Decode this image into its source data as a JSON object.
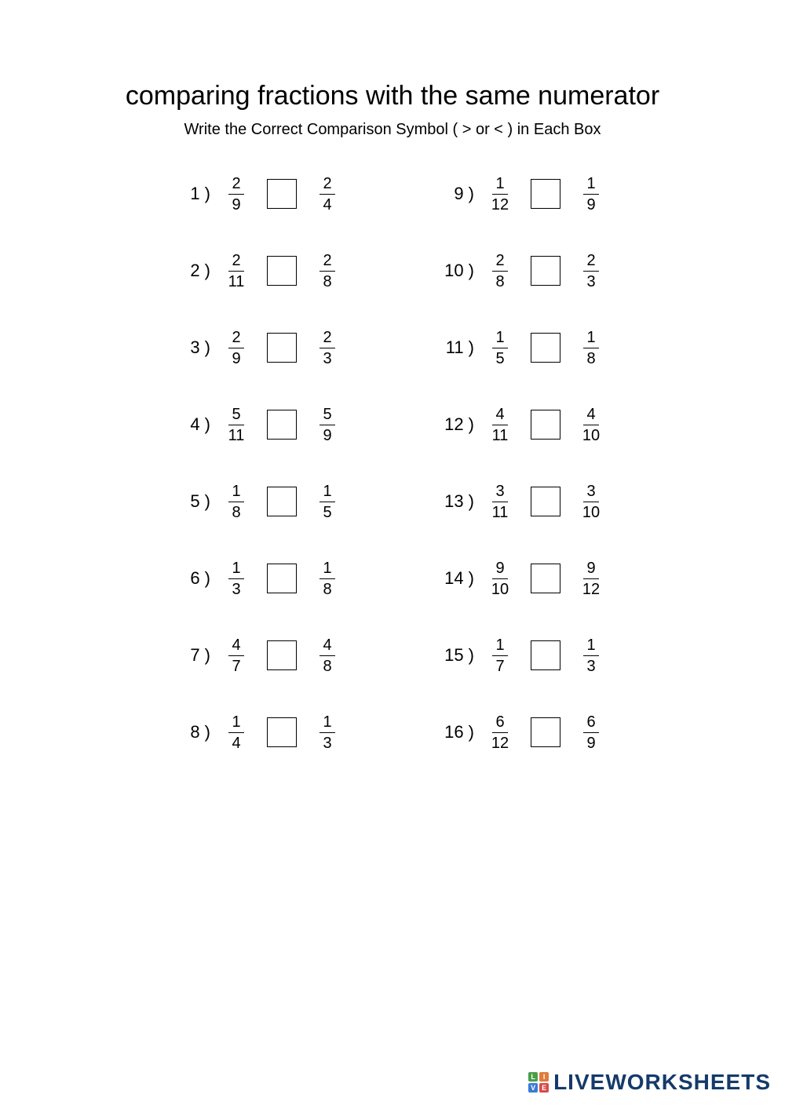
{
  "title": "comparing fractions with the same numerator",
  "instructions": "Write the Correct Comparison Symbol ( > or < ) in Each Box",
  "problems": [
    {
      "n": "1 )",
      "ln": "2",
      "ld": "9",
      "rn": "2",
      "rd": "4"
    },
    {
      "n": "2 )",
      "ln": "2",
      "ld": "11",
      "rn": "2",
      "rd": "8"
    },
    {
      "n": "3 )",
      "ln": "2",
      "ld": "9",
      "rn": "2",
      "rd": "3"
    },
    {
      "n": "4 )",
      "ln": "5",
      "ld": "11",
      "rn": "5",
      "rd": "9"
    },
    {
      "n": "5 )",
      "ln": "1",
      "ld": "8",
      "rn": "1",
      "rd": "5"
    },
    {
      "n": "6 )",
      "ln": "1",
      "ld": "3",
      "rn": "1",
      "rd": "8"
    },
    {
      "n": "7 )",
      "ln": "4",
      "ld": "7",
      "rn": "4",
      "rd": "8"
    },
    {
      "n": "8 )",
      "ln": "1",
      "ld": "4",
      "rn": "1",
      "rd": "3"
    },
    {
      "n": "9 )",
      "ln": "1",
      "ld": "12",
      "rn": "1",
      "rd": "9"
    },
    {
      "n": "10 )",
      "ln": "2",
      "ld": "8",
      "rn": "2",
      "rd": "3"
    },
    {
      "n": "11 )",
      "ln": "1",
      "ld": "5",
      "rn": "1",
      "rd": "8"
    },
    {
      "n": "12 )",
      "ln": "4",
      "ld": "11",
      "rn": "4",
      "rd": "10"
    },
    {
      "n": "13 )",
      "ln": "3",
      "ld": "11",
      "rn": "3",
      "rd": "10"
    },
    {
      "n": "14 )",
      "ln": "9",
      "ld": "10",
      "rn": "9",
      "rd": "12"
    },
    {
      "n": "15 )",
      "ln": "1",
      "ld": "7",
      "rn": "1",
      "rd": "3"
    },
    {
      "n": "16 )",
      "ln": "6",
      "ld": "12",
      "rn": "6",
      "rd": "9"
    }
  ],
  "watermark": {
    "text": "LIVEWORKSHEETS",
    "logo_letters": [
      "L",
      "I",
      "V",
      "E"
    ],
    "logo_colors": [
      "#4a9e4a",
      "#e07b3a",
      "#3a7bd5",
      "#d94a4a"
    ],
    "text_color": "#153a6b"
  },
  "styling": {
    "page_bg": "#ffffff",
    "text_color": "#000000",
    "title_fontsize": 34,
    "instructions_fontsize": 20,
    "problem_fontsize": 22,
    "fraction_fontsize": 20,
    "box_size": 38,
    "box_border": "#000000"
  }
}
